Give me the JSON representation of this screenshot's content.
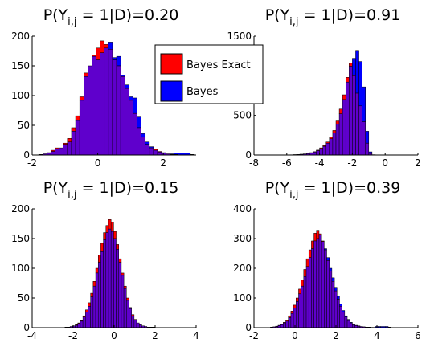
{
  "colors": {
    "exact": "#ff0000",
    "approx": "#0000ff",
    "overlap": "#5f00cc",
    "edge": "#000000"
  },
  "legend": {
    "entries": [
      "Bayes Exact",
      "Bayes"
    ],
    "placement": "between top panels"
  },
  "chart_data": [
    {
      "type": "histogram",
      "title": {
        "pre": "P(Y",
        "sub": "i,j",
        "post": " = 1|D)=0.20"
      },
      "xlim": [
        -2,
        3
      ],
      "ylim": [
        0,
        200
      ],
      "xticks": [
        -2,
        0,
        2
      ],
      "xtick_labels": [
        "-2",
        "0",
        "2"
      ],
      "yticks": [
        0,
        50,
        100,
        150,
        200
      ],
      "ytick_labels": [
        "0",
        "50",
        "100",
        "150",
        "200"
      ],
      "grid": false,
      "bin_start": -1.8,
      "bin_width": 0.125,
      "series": [
        {
          "name": "Bayes Exact",
          "values": [
            1,
            2,
            4,
            8,
            12,
            12,
            20,
            28,
            46,
            66,
            98,
            138,
            150,
            168,
            180,
            192,
            186,
            178,
            160,
            150,
            132,
            112,
            92,
            70,
            46,
            30,
            18,
            12,
            10,
            6,
            4,
            2,
            1,
            1,
            0,
            0,
            0,
            0
          ]
        },
        {
          "name": "Bayes",
          "values": [
            1,
            2,
            3,
            6,
            10,
            12,
            18,
            22,
            40,
            58,
            92,
            132,
            150,
            166,
            160,
            172,
            180,
            190,
            164,
            166,
            134,
            118,
            98,
            96,
            64,
            36,
            22,
            14,
            8,
            5,
            4,
            2,
            2,
            3,
            3,
            3,
            3,
            1
          ]
        }
      ]
    },
    {
      "type": "histogram",
      "title": {
        "pre": "P(Y",
        "sub": "i,j",
        "post": " = 1|D)=0.91"
      },
      "xlim": [
        -8,
        2
      ],
      "ylim": [
        0,
        1500
      ],
      "xticks": [
        -8,
        -6,
        -4,
        -2,
        0,
        2
      ],
      "xtick_labels": [
        "-8",
        "-6",
        "-4",
        "-2",
        "0",
        "2"
      ],
      "yticks": [
        0,
        500,
        1000,
        1500
      ],
      "ytick_labels": [
        "0",
        "500",
        "1000",
        "1500"
      ],
      "grid": false,
      "bin_start": -6.0,
      "bin_width": 0.2,
      "series": [
        {
          "name": "Bayes Exact",
          "values": [
            2,
            3,
            5,
            7,
            10,
            14,
            20,
            30,
            42,
            62,
            90,
            120,
            165,
            225,
            310,
            430,
            580,
            760,
            980,
            1160,
            1000,
            780,
            620,
            420,
            150,
            20,
            2,
            0,
            0,
            0
          ]
        },
        {
          "name": "Bayes",
          "values": [
            2,
            3,
            4,
            6,
            9,
            12,
            18,
            26,
            38,
            55,
            80,
            110,
            150,
            205,
            280,
            390,
            520,
            700,
            920,
            1120,
            1220,
            1320,
            1180,
            860,
            300,
            40,
            4,
            0,
            0,
            0
          ]
        }
      ]
    },
    {
      "type": "histogram",
      "title": {
        "pre": "P(Y",
        "sub": "i,j",
        "post": " = 1|D)=0.15"
      },
      "xlim": [
        -4,
        4
      ],
      "ylim": [
        0,
        200
      ],
      "xticks": [
        -4,
        -2,
        0,
        2,
        4
      ],
      "xtick_labels": [
        "-4",
        "-2",
        "0",
        "2",
        "4"
      ],
      "yticks": [
        0,
        50,
        100,
        150,
        200
      ],
      "ytick_labels": [
        "0",
        "50",
        "100",
        "150",
        "200"
      ],
      "grid": false,
      "bin_start": -2.4,
      "bin_width": 0.125,
      "series": [
        {
          "name": "Bayes Exact",
          "values": [
            1,
            1,
            2,
            3,
            5,
            8,
            12,
            20,
            30,
            42,
            58,
            78,
            100,
            122,
            142,
            160,
            172,
            182,
            178,
            162,
            140,
            116,
            92,
            70,
            50,
            34,
            22,
            14,
            8,
            5,
            3,
            2,
            1,
            1,
            1,
            0,
            0,
            0,
            0,
            0
          ]
        },
        {
          "name": "Bayes",
          "values": [
            1,
            1,
            2,
            3,
            4,
            7,
            11,
            18,
            26,
            36,
            52,
            70,
            92,
            110,
            128,
            148,
            160,
            166,
            162,
            150,
            132,
            110,
            88,
            66,
            46,
            32,
            20,
            13,
            8,
            5,
            3,
            2,
            1,
            1,
            0,
            0,
            0,
            0,
            0,
            0
          ]
        }
      ]
    },
    {
      "type": "histogram",
      "title": {
        "pre": "P(Y",
        "sub": "i,j",
        "post": " = 1|D)=0.39"
      },
      "xlim": [
        -2,
        6
      ],
      "ylim": [
        0,
        400
      ],
      "xticks": [
        -2,
        0,
        2,
        4,
        6
      ],
      "xtick_labels": [
        "-2",
        "0",
        "2",
        "4",
        "6"
      ],
      "yticks": [
        0,
        100,
        200,
        300,
        400
      ],
      "ytick_labels": [
        "0",
        "100",
        "200",
        "300",
        "400"
      ],
      "grid": false,
      "bin_start": -1.2,
      "bin_width": 0.125,
      "series": [
        {
          "name": "Bayes Exact",
          "values": [
            2,
            3,
            5,
            8,
            12,
            18,
            26,
            40,
            56,
            76,
            100,
            130,
            160,
            196,
            232,
            262,
            292,
            318,
            328,
            316,
            292,
            262,
            226,
            190,
            156,
            124,
            96,
            72,
            52,
            36,
            24,
            16,
            10,
            7,
            5,
            4,
            3,
            2,
            1,
            1,
            0,
            0,
            0,
            0,
            0,
            0,
            0
          ]
        },
        {
          "name": "Bayes",
          "values": [
            2,
            3,
            4,
            7,
            10,
            16,
            22,
            34,
            48,
            66,
            88,
            114,
            140,
            172,
            206,
            236,
            266,
            292,
            300,
            312,
            290,
            266,
            236,
            200,
            168,
            136,
            106,
            80,
            58,
            40,
            28,
            18,
            12,
            8,
            6,
            4,
            3,
            2,
            2,
            1,
            1,
            4,
            4,
            4,
            4,
            4,
            2
          ]
        }
      ]
    }
  ]
}
